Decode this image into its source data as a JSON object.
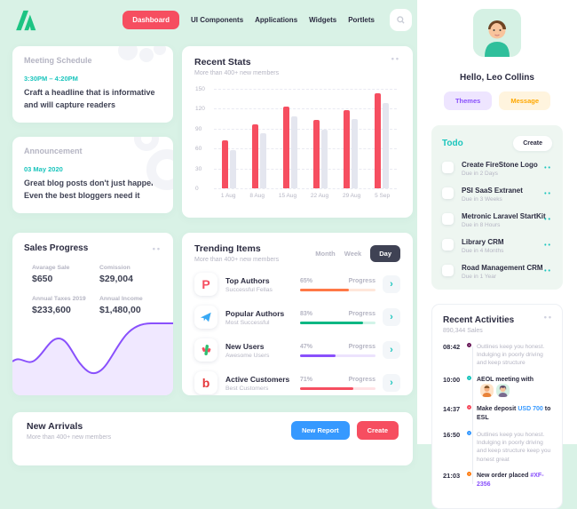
{
  "nav": {
    "items": [
      {
        "label": "Dashboard",
        "active": true
      },
      {
        "label": "UI Components"
      },
      {
        "label": "Applications"
      },
      {
        "label": "Widgets"
      },
      {
        "label": "Portlets"
      }
    ]
  },
  "meeting": {
    "title": "Meeting Schedule",
    "time": "3:30PM – 4:20PM",
    "text": "Craft a headline that is informative and will capture readers"
  },
  "announcement": {
    "title": "Announcement",
    "date": "03 May 2020",
    "text": "Great blog posts don't just happen Even the best bloggers need it"
  },
  "sales": {
    "title": "Sales Progress",
    "accent_color": "#8950fc",
    "stats": [
      {
        "label": "Avarage Sale",
        "value": "$650"
      },
      {
        "label": "Comission",
        "value": "$29,004"
      },
      {
        "label": "Annual Taxes 2019",
        "value": "$233,600"
      },
      {
        "label": "Annual Income",
        "value": "$1,480,00"
      }
    ]
  },
  "stats_card": {
    "title": "Recent Stats",
    "subtitle": "More than 400+ new members"
  },
  "trending": {
    "title": "Trending Items",
    "subtitle": "More than 400+ new members",
    "tabs": [
      {
        "label": "Month"
      },
      {
        "label": "Week"
      },
      {
        "label": "Day",
        "active": true
      }
    ],
    "progress_label": "Progress",
    "rows": [
      {
        "icon": "product-hunt-icon",
        "glyph": "P",
        "glyph_color": "#f64e60",
        "title": "Top Authors",
        "subtitle": "Successful Fellas",
        "percent": "65%",
        "percent_value": 65,
        "color": "#ff7846",
        "track": "#ffe7da"
      },
      {
        "icon": "telegram-icon",
        "glyph": "✈",
        "glyph_color": "#39a9f4",
        "title": "Popular Authors",
        "subtitle": "Most Successful",
        "percent": "83%",
        "percent_value": 83,
        "color": "#0bb783",
        "track": "#d2f4e8"
      },
      {
        "icon": "new-users-icon",
        "glyph": "⸙",
        "glyph_color": "#2fbf71",
        "title": "New Users",
        "subtitle": "Awesome Users",
        "percent": "47%",
        "percent_value": 47,
        "color": "#8950fc",
        "track": "#ece3fd"
      },
      {
        "icon": "beats-icon",
        "glyph": "b",
        "glyph_color": "#e5383b",
        "title": "Active Customers",
        "subtitle": "Best Customers",
        "percent": "71%",
        "percent_value": 71,
        "color": "#f64e60",
        "track": "#ffe2e5"
      }
    ]
  },
  "arrivals": {
    "title": "New Arrivals",
    "subtitle": "More than 400+ new members",
    "new_report_label": "New Report",
    "create_label": "Create",
    "new_report_color": "#3699ff",
    "create_color": "#f64e60"
  },
  "sidebar": {
    "profile": {
      "greeting": "Hello, Leo Collins",
      "themes_label": "Themes",
      "message_label": "Message"
    },
    "todo": {
      "title": "Todo",
      "create_label": "Create",
      "items": [
        {
          "title": "Create FireStone Logo",
          "due": "Due in 2 Days"
        },
        {
          "title": "PSI SaaS Extranet",
          "due": "Due in 3 Weeks"
        },
        {
          "title": "Metronic Laravel StartKit",
          "due": "Due in 8 Hours"
        },
        {
          "title": "Library CRM",
          "due": "Due in 4 Months"
        },
        {
          "title": "Road Management CRM",
          "due": "Due in 1 Year"
        }
      ]
    },
    "activities": {
      "title": "Recent Activities",
      "subtitle": "890,344 Sales",
      "items": [
        {
          "time": "08:42",
          "color": "#6a1b5a",
          "text": "Outlines keep you honest. Indulging in poorly driving and keep structure"
        },
        {
          "time": "10:00",
          "color": "#1bc5bd",
          "text": "AEOL meeting with"
        },
        {
          "time": "14:37",
          "color": "#f64e60",
          "text_pre": "Make deposit",
          "link": "USD 700",
          "link_color": "#3699ff",
          "text_post": "to ESL"
        },
        {
          "time": "16:50",
          "color": "#3699ff",
          "text": "Outlines keep you honest. Indulging in poorly driving and keep structure keep you honest great"
        },
        {
          "time": "21:03",
          "color": "#fd7e14",
          "text_pre": "New order placed",
          "link": "#XF-2356",
          "link_color": "#8950fc"
        }
      ]
    }
  },
  "chart_data": [
    {
      "type": "bar",
      "title": "Recent Stats",
      "subtitle": "More than 400+ new members",
      "categories": [
        "1 Aug",
        "8 Aug",
        "15 Aug",
        "22 Aug",
        "29 Aug",
        "5 Sep"
      ],
      "series": [
        {
          "name": "current",
          "color": "#f64e60",
          "values": [
            73,
            97,
            123,
            103,
            118,
            143
          ]
        },
        {
          "name": "previous",
          "color": "#e4e6ef",
          "values": [
            58,
            83,
            108,
            88,
            104,
            128
          ]
        }
      ],
      "ylim": [
        0,
        150
      ],
      "yticks": [
        150,
        120,
        90,
        60,
        30,
        0
      ],
      "grid": "horizontal-dashed",
      "legend": "none"
    },
    {
      "type": "area",
      "title": "Sales Progress trend (unlabeled sparkline)",
      "color": "#8950fc",
      "values": [
        42,
        38,
        50,
        68,
        62,
        42,
        33,
        40,
        65,
        88,
        90,
        90
      ],
      "ylim": [
        0,
        100
      ]
    }
  ]
}
